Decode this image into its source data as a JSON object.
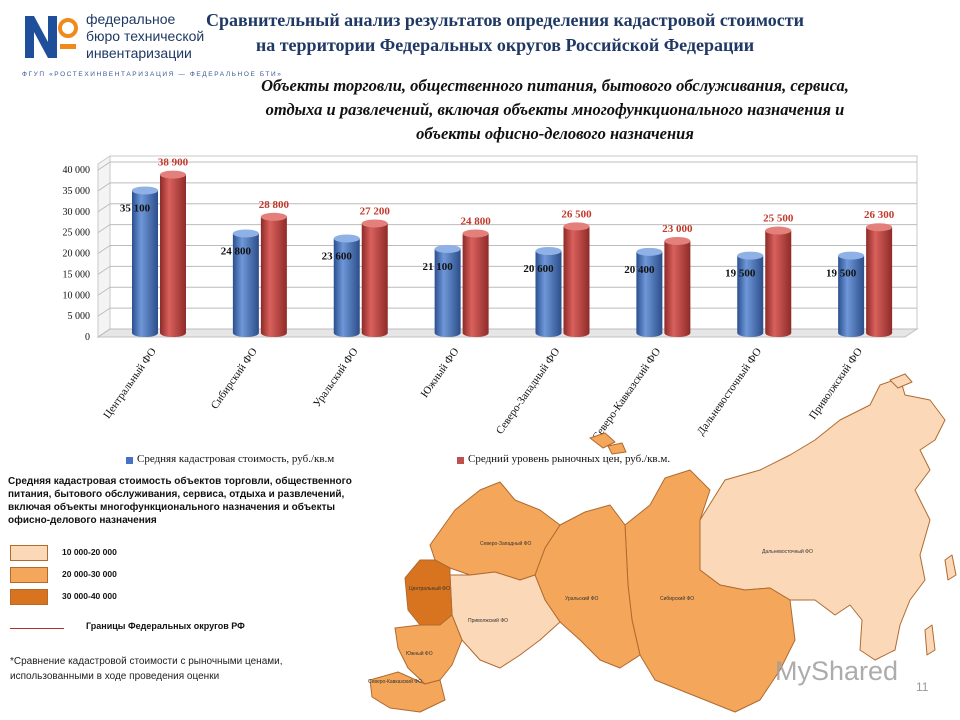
{
  "header": {
    "logo_lines": [
      "федеральное",
      "бюро технической",
      "инвентаризации"
    ],
    "logo_tagline": "ФГУП «РОСТЕХИНВЕНТАРИЗАЦИЯ — ФЕДЕРАЛЬНОЕ БТИ»",
    "title_lines": [
      "Сравнительный анализ результатов определения кадастровой стоимости",
      "на территории Федеральных округов Российской Федерации"
    ],
    "subtitle_lines": [
      "Объекты торговли, общественного питания, бытового обслуживания, сервиса,",
      "отдыха и развлечений, включая объекты многофункционального назначения и",
      "объекты офисно-делового назначения"
    ]
  },
  "chart_data": {
    "type": "bar",
    "categories": [
      "Центральный ФО",
      "Сибирский ФО",
      "Уральский ФО",
      "Южный ФО",
      "Северо-Западный ФО",
      "Северо-Кавказский ФО",
      "Дальневосточный ФО",
      "Приволжский ФО"
    ],
    "series": [
      {
        "name": "Средняя кадастровая стоимость, руб./кв.м",
        "color": "#4472c4",
        "values": [
          35100,
          24800,
          23600,
          21100,
          20600,
          20400,
          19500,
          19500
        ],
        "labels": [
          "35 100",
          "24 800",
          "23 600",
          "21 100",
          "20 600",
          "20 400",
          "19 500",
          "19 500"
        ]
      },
      {
        "name": "Средний уровень рыночных цен, руб./кв.м.",
        "color": "#c0504d",
        "values": [
          38900,
          28800,
          27200,
          24800,
          26500,
          23000,
          25500,
          26300
        ],
        "labels": [
          "38 900",
          "28 800",
          "27 200",
          "24 800",
          "26 500",
          "23 000",
          "25 500",
          "26 300"
        ]
      }
    ],
    "ylim": [
      0,
      40000
    ],
    "yticks": [
      0,
      5000,
      10000,
      15000,
      20000,
      25000,
      30000,
      35000,
      40000
    ],
    "ytick_labels": [
      "0",
      "5 000",
      "10 000",
      "15 000",
      "20 000",
      "25 000",
      "30 000",
      "35 000",
      "40 000"
    ],
    "grid": true,
    "legend_position": "bottom"
  },
  "map_legend": {
    "title": "Средняя кадастровая стоимость объектов торговли, общественного питания, бытового обслуживания, сервиса, отдыха и развлечений, включая объекты многофункционального назначения и объекты офисно-делового назначения",
    "ranges": [
      {
        "label": "10 000-20 000",
        "color": "#fbd9b8"
      },
      {
        "label": "20 000-30 000",
        "color": "#f4a75a"
      },
      {
        "label": "30 000-40 000",
        "color": "#d8741f"
      }
    ],
    "border_label": "Границы Федеральных округов РФ"
  },
  "map": {
    "region_labels": [
      "Северо-Западный ФО",
      "Центральный ФО",
      "Приволжский ФО",
      "Уральский ФО",
      "Сибирский ФО",
      "Дальневосточный ФО",
      "Южный ФО",
      "Северо-Кавказский ФО"
    ],
    "colors": {
      "light": "#fbd9b8",
      "medium": "#f4a75a",
      "dark": "#d8741f",
      "border": "#b06a30"
    }
  },
  "footnote_lines": [
    "*Сравнение кадастровой стоимости с рыночными ценами,",
    "использованными в ходе проведения оценки"
  ],
  "watermark": "MyShared",
  "slide_number": "11"
}
